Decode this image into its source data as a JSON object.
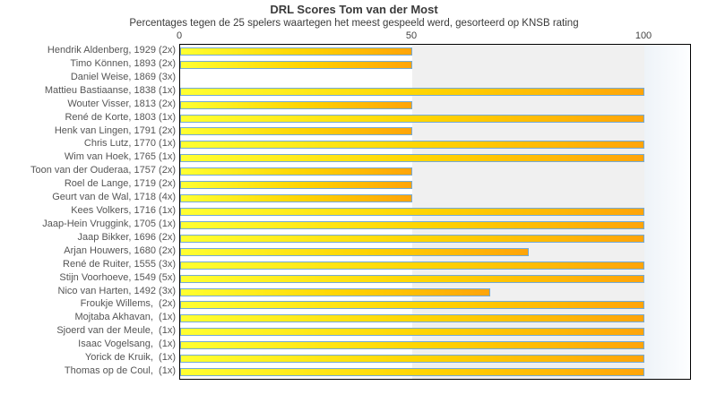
{
  "chart": {
    "title": "DRL Scores Tom van der Most",
    "subtitle": "Percentages tegen de 25 spelers waartegen het meest gespeeld werd, gesorteerd op KNSB rating"
  },
  "chart_data": {
    "type": "bar",
    "orientation": "horizontal",
    "title": "DRL Scores Tom van der Most",
    "subtitle": "Percentages tegen de 25 spelers waartegen het meest gespeeld werd, gesorteerd op KNSB rating",
    "xlabel": "",
    "ylabel": "",
    "xlim": [
      0,
      110
    ],
    "xticks": [
      0,
      50,
      100
    ],
    "grid": false,
    "legend": "none",
    "categories": [
      "Hendrik Aldenberg, 1929 (2x)",
      "Timo Können, 1893 (2x)",
      "Daniel Weise, 1869 (3x)",
      "Mattieu Bastiaanse, 1838 (1x)",
      "Wouter Visser, 1813 (2x)",
      "René de Korte, 1803 (1x)",
      "Henk van Lingen, 1791 (2x)",
      "Chris Lutz, 1770 (1x)",
      "Wim van Hoek, 1765 (1x)",
      "Toon van der Ouderaa, 1757 (2x)",
      "Roel de Lange, 1719 (2x)",
      "Geurt van de Wal, 1718 (4x)",
      "Kees Volkers, 1716 (1x)",
      "Jaap-Hein Vruggink, 1705 (1x)",
      "Jaap Bikker, 1696 (2x)",
      "Arjan Houwers, 1680 (2x)",
      "René de Ruiter, 1555 (3x)",
      "Stijn Voorhoeve, 1549 (5x)",
      "Nico van Harten, 1492 (3x)",
      "Froukje Willems,  (2x)",
      "Mojtaba Akhavan,  (1x)",
      "Sjoerd van der Meule,  (1x)",
      "Isaac Vogelsang,  (1x)",
      "Yorick de Kruik,  (1x)",
      "Thomas op de Coul,  (1x)"
    ],
    "values": [
      50,
      50,
      0,
      100,
      50,
      100,
      50,
      100,
      100,
      50,
      50,
      50,
      100,
      100,
      100,
      75,
      100,
      100,
      66.7,
      100,
      100,
      100,
      100,
      100,
      100
    ],
    "colors": {
      "bar_gradient_start": "#ffff31",
      "bar_gradient_end": "#ffa40a",
      "bar_border": "#74aad6",
      "zone_0_50": "#ffffff",
      "zone_50_100": "#f0f0f0",
      "zone_over_100": "#eef3f8",
      "plot_border": "#000000",
      "title_text": "#3b3b3b",
      "label_text": "#555555",
      "tick_text": "#444444"
    }
  }
}
